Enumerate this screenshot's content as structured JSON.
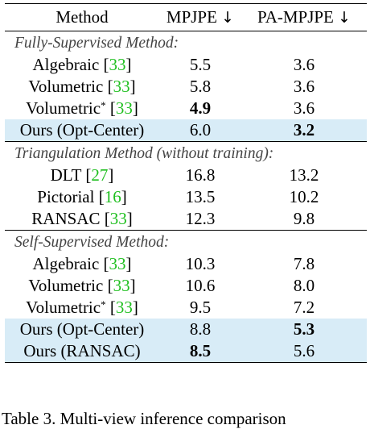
{
  "header": {
    "method": "Method",
    "mpjpe": "MPJPE",
    "pa_mpjpe": "PA-MPJPE",
    "arrow": "↓"
  },
  "sections": [
    {
      "title": "Fully-Supervised Method:",
      "rows": [
        {
          "name": "Algebraic",
          "cite": "33",
          "star": false,
          "mpjpe": "5.5",
          "pa": "3.6",
          "bold_mpjpe": false,
          "bold_pa": false,
          "highlight": false
        },
        {
          "name": "Volumetric",
          "cite": "33",
          "star": false,
          "mpjpe": "5.8",
          "pa": "3.6",
          "bold_mpjpe": false,
          "bold_pa": false,
          "highlight": false
        },
        {
          "name": "Volumetric",
          "cite": "33",
          "star": true,
          "mpjpe": "4.9",
          "pa": "3.6",
          "bold_mpjpe": true,
          "bold_pa": false,
          "highlight": false
        },
        {
          "name": "Ours (Opt-Center)",
          "cite": "",
          "star": false,
          "mpjpe": "6.0",
          "pa": "3.2",
          "bold_mpjpe": false,
          "bold_pa": true,
          "highlight": true
        }
      ]
    },
    {
      "title": "Triangulation Method (without training):",
      "rows": [
        {
          "name": "DLT",
          "cite": "27",
          "star": false,
          "mpjpe": "16.8",
          "pa": "13.2",
          "bold_mpjpe": false,
          "bold_pa": false,
          "highlight": false
        },
        {
          "name": "Pictorial",
          "cite": "16",
          "star": false,
          "mpjpe": "13.5",
          "pa": "10.2",
          "bold_mpjpe": false,
          "bold_pa": false,
          "highlight": false
        },
        {
          "name": "RANSAC",
          "cite": "33",
          "star": false,
          "mpjpe": "12.3",
          "pa": "9.8",
          "bold_mpjpe": false,
          "bold_pa": false,
          "highlight": false
        }
      ]
    },
    {
      "title": "Self-Supervised Method:",
      "rows": [
        {
          "name": "Algebraic",
          "cite": "33",
          "star": false,
          "mpjpe": "10.3",
          "pa": "7.8",
          "bold_mpjpe": false,
          "bold_pa": false,
          "highlight": false
        },
        {
          "name": "Volumetric",
          "cite": "33",
          "star": false,
          "mpjpe": "10.6",
          "pa": "8.0",
          "bold_mpjpe": false,
          "bold_pa": false,
          "highlight": false
        },
        {
          "name": "Volumetric",
          "cite": "33",
          "star": true,
          "mpjpe": "9.5",
          "pa": "7.2",
          "bold_mpjpe": false,
          "bold_pa": false,
          "highlight": false
        },
        {
          "name": "Ours (Opt-Center)",
          "cite": "",
          "star": false,
          "mpjpe": "8.8",
          "pa": "5.3",
          "bold_mpjpe": false,
          "bold_pa": true,
          "highlight": true
        },
        {
          "name": "Ours (RANSAC)",
          "cite": "",
          "star": false,
          "mpjpe": "8.5",
          "pa": "5.6",
          "bold_mpjpe": true,
          "bold_pa": false,
          "highlight": true
        }
      ]
    }
  ],
  "caption": "Table 3.  Multi-view inference comparison"
}
